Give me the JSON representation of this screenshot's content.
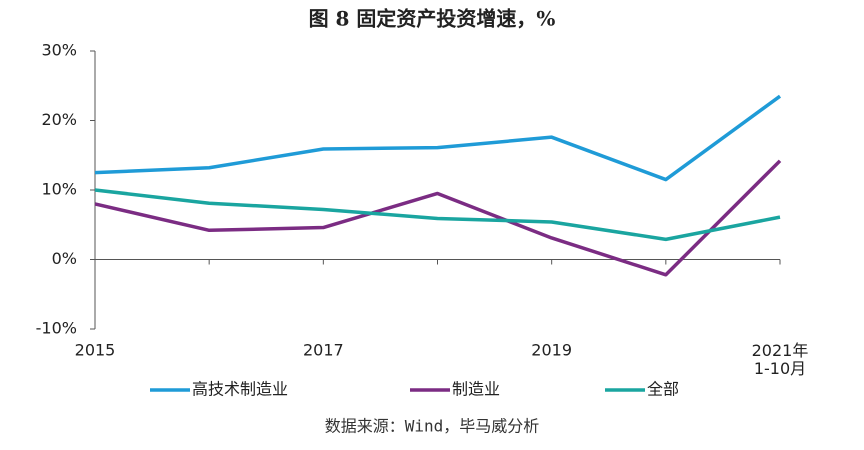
{
  "chart_data": {
    "type": "line",
    "title": "图 8 固定资产投资增速，%",
    "categories": [
      "2015",
      null,
      "2017",
      null,
      "2019",
      null,
      "2021年\n1-10月"
    ],
    "series": [
      {
        "name": "高技术制造业",
        "color": "#1f9bd7",
        "values": [
          12.5,
          13.2,
          15.9,
          16.1,
          17.6,
          11.5,
          23.5
        ]
      },
      {
        "name": "制造业",
        "color": "#7b2c83",
        "values": [
          8.0,
          4.2,
          4.6,
          9.5,
          3.1,
          -2.2,
          14.2
        ]
      },
      {
        "name": "全部",
        "color": "#1aa5a0",
        "values": [
          10.0,
          8.1,
          7.2,
          5.9,
          5.4,
          2.9,
          6.1
        ]
      }
    ],
    "ylim": [
      -10,
      30
    ],
    "yticks": [
      {
        "value": -10,
        "label": "-10%"
      },
      {
        "value": 0,
        "label": "0%"
      },
      {
        "value": 10,
        "label": "10%"
      },
      {
        "value": 20,
        "label": "20%"
      },
      {
        "value": 30,
        "label": "30%"
      }
    ],
    "grid": false,
    "legend": "bottom",
    "source": "数据来源：Wind，毕马威分析"
  }
}
